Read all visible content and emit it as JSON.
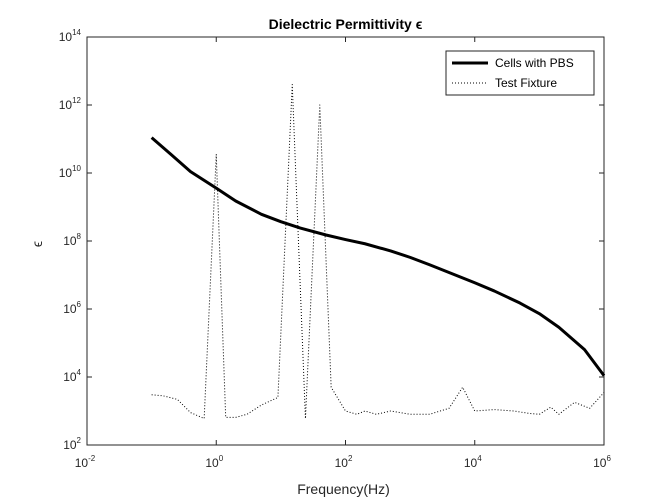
{
  "chart_data": {
    "type": "line",
    "title": "Dielectric Permittivity ϵ",
    "xlabel": "Frequency(Hz)",
    "ylabel": "ϵ",
    "xscale": "log",
    "yscale": "log",
    "xlim": [
      0.01,
      1000000
    ],
    "ylim": [
      100,
      100000000000000
    ],
    "x_ticks": [
      {
        "value": 0.01,
        "base": "10",
        "exp": "-2"
      },
      {
        "value": 1,
        "base": "10",
        "exp": "0"
      },
      {
        "value": 100,
        "base": "10",
        "exp": "2"
      },
      {
        "value": 10000,
        "base": "10",
        "exp": "4"
      },
      {
        "value": 1000000,
        "base": "10",
        "exp": "6"
      }
    ],
    "y_ticks": [
      {
        "value": 100,
        "base": "10",
        "exp": "2"
      },
      {
        "value": 10000,
        "base": "10",
        "exp": "4"
      },
      {
        "value": 1000000,
        "base": "10",
        "exp": "6"
      },
      {
        "value": 100000000,
        "base": "10",
        "exp": "8"
      },
      {
        "value": 10000000000,
        "base": "10",
        "exp": "10"
      },
      {
        "value": 1000000000000,
        "base": "10",
        "exp": "12"
      },
      {
        "value": 100000000000000,
        "base": "10",
        "exp": "14"
      }
    ],
    "grid": false,
    "legend_position": "top-right",
    "series": [
      {
        "name": "Cells with PBS",
        "style": "solid",
        "color": "#000000",
        "x": [
          0.1,
          0.2,
          0.4,
          1,
          2,
          5,
          10,
          20,
          50,
          100,
          200,
          500,
          1000,
          2000,
          5000,
          10000,
          20000,
          50000,
          100000,
          200000,
          500000,
          1000000
        ],
        "y": [
          110000000000.0,
          35000000000.0,
          11000000000.0,
          3600000000.0,
          1500000000.0,
          610000000.0,
          370000000.0,
          240000000.0,
          150000000.0,
          110000000.0,
          83000000.0,
          51000000.0,
          33000000.0,
          20000000.0,
          10000000.0,
          5900000.0,
          3400000.0,
          1500000.0,
          730000.0,
          290000.0,
          64000.0,
          11000.0
        ]
      },
      {
        "name": "Test Fixture",
        "style": "dotted",
        "color": "#000000",
        "x": [
          0.1,
          0.15,
          0.25,
          0.4,
          0.65,
          1.0,
          1.4,
          2.0,
          3.0,
          5.0,
          9.0,
          15,
          24,
          40,
          60,
          100,
          150,
          200,
          300,
          500,
          700,
          1000,
          2000,
          4000,
          6500,
          10000,
          20000,
          40000,
          70000,
          100000,
          150000,
          200000,
          350000,
          600000,
          1000000
        ],
        "y": [
          3000,
          2800,
          2200,
          900,
          600,
          35000000000.0,
          650,
          650,
          800,
          1500,
          2500,
          4000000000000.0,
          600,
          1000000000000.0,
          5000,
          1000,
          800,
          1000,
          800,
          1000,
          900,
          800,
          800,
          1200,
          5000,
          1000,
          1100,
          1000,
          850,
          800,
          1300,
          800,
          1800,
          1200,
          3500
        ]
      }
    ]
  }
}
